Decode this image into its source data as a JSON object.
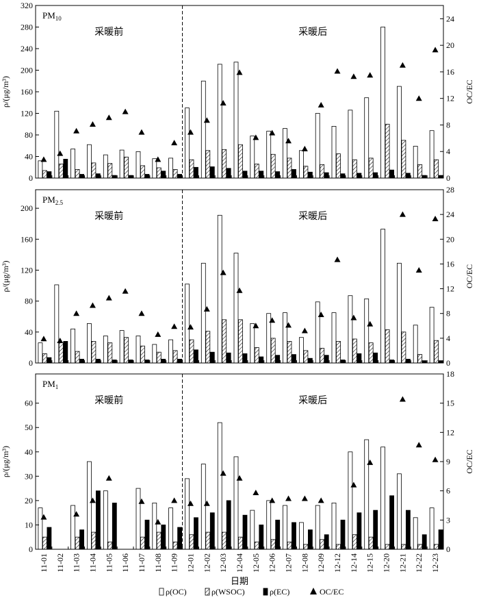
{
  "chart_data": {
    "type": "bar",
    "categories": [
      "11-01",
      "11-02",
      "11-03",
      "11-04",
      "11-05",
      "11-06",
      "11-07",
      "11-08",
      "11-09",
      "12-01",
      "12-02",
      "12-03",
      "12-04",
      "12-05",
      "12-06",
      "12-07",
      "12-08",
      "12-09",
      "12-12",
      "12-14",
      "12-15",
      "12-20",
      "12-21",
      "12-22",
      "12-23"
    ],
    "xlabel": "日期",
    "ylabel": "ρ/(μg/m³)",
    "y2label": "OC/EC",
    "period_labels": [
      "采暖前",
      "采暖后"
    ],
    "divider_after": "11-09",
    "legend": {
      "oc": "ρ(OC)",
      "wsoc": "ρ(WSOC)",
      "ec": "ρ(EC)",
      "ratio": "OC/EC",
      "position": "bottom"
    },
    "panels": [
      {
        "title_main": "PM",
        "title_sub": "10",
        "ylim": [
          0,
          320
        ],
        "yticks": [
          0,
          40,
          80,
          120,
          160,
          200,
          240,
          280,
          320
        ],
        "y2lim": [
          0,
          26
        ],
        "y2ticks": [
          0,
          4,
          8,
          12,
          16,
          20,
          24
        ],
        "series": [
          {
            "name": "ρ(OC)",
            "values": [
              32,
              124,
              54,
              62,
              43,
              52,
              49,
              36,
              37,
              130,
              180,
              211,
              215,
              78,
              87,
              92,
              51,
              120,
              96,
              126,
              149,
              280,
              170,
              59,
              88
            ]
          },
          {
            "name": "ρ(WSOC)",
            "values": [
              14,
              26,
              16,
              28,
              27,
              39,
              23,
              19,
              16,
              34,
              51,
              53,
              62,
              26,
              44,
              37,
              22,
              25,
              45,
              34,
              37,
              100,
              70,
              25,
              34
            ]
          },
          {
            "name": "ρ(EC)",
            "values": [
              12,
              35,
              7,
              8,
              5,
              5,
              7,
              13,
              7,
              20,
              21,
              18,
              13,
              13,
              12,
              16,
              11,
              10,
              8,
              9,
              10,
              15,
              9,
              5,
              5
            ]
          },
          {
            "name": "OC/EC",
            "values": [
              2.8,
              3.7,
              7.1,
              8.1,
              9.1,
              10.0,
              6.9,
              2.8,
              5.3,
              6.9,
              8.7,
              11.3,
              15.9,
              6.1,
              6.8,
              5.6,
              4.4,
              11.0,
              16.1,
              15.3,
              15.5,
              null,
              17.0,
              12.0,
              19.3
            ]
          }
        ]
      },
      {
        "title_main": "PM",
        "title_sub": "2.5",
        "ylim": [
          0,
          224
        ],
        "yticks": [
          0,
          40,
          80,
          120,
          160,
          200
        ],
        "y2lim": [
          0,
          28
        ],
        "y2ticks": [
          0,
          4,
          8,
          12,
          16,
          20,
          24,
          28
        ],
        "series": [
          {
            "name": "ρ(OC)",
            "values": [
              26,
              101,
              44,
              51,
              35,
              42,
              35,
              24,
              30,
              102,
              129,
              191,
              142,
              51,
              64,
              65,
              33,
              79,
              65,
              87,
              83,
              173,
              129,
              49,
              72
            ]
          },
          {
            "name": "ρ(WSOC)",
            "values": [
              12,
              26,
              15,
              28,
              26,
              33,
              22,
              14,
              16,
              30,
              41,
              56,
              56,
              20,
              32,
              28,
              16,
              19,
              28,
              31,
              26,
              43,
              40,
              11,
              29
            ]
          },
          {
            "name": "ρ(EC)",
            "values": [
              7,
              28,
              5,
              5,
              4,
              4,
              4,
              5,
              5,
              17,
              14,
              13,
              12,
              8,
              10,
              11,
              6,
              10,
              4,
              12,
              13,
              4,
              5,
              3,
              3
            ]
          },
          {
            "name": "OC/EC",
            "values": [
              3.9,
              3.6,
              8.0,
              9.3,
              10.5,
              11.6,
              8.0,
              4.6,
              5.9,
              5.8,
              8.7,
              14.6,
              11.7,
              6.0,
              6.9,
              6.1,
              5.2,
              7.8,
              16.7,
              7.3,
              6.3,
              null,
              24.0,
              15.0,
              23.3
            ]
          }
        ]
      },
      {
        "title_main": "PM",
        "title_sub": "1",
        "ylim": [
          0,
          72
        ],
        "yticks": [
          0,
          10,
          20,
          30,
          40,
          50,
          60
        ],
        "y2lim": [
          0,
          18
        ],
        "y2ticks": [
          0,
          3,
          6,
          9,
          12,
          15,
          18
        ],
        "series": [
          {
            "name": "ρ(OC)",
            "values": [
              17,
              0,
              18,
              36,
              24,
              0,
              25,
              19,
              17,
              29,
              35,
              52,
              38,
              16,
              20,
              18,
              11,
              18,
              19,
              40,
              45,
              42,
              31,
              13,
              17
            ]
          },
          {
            "name": "ρ(WSOC)",
            "values": [
              5,
              0,
              5,
              7,
              3,
              0,
              5,
              7,
              3,
              6,
              7,
              7,
              5,
              3,
              4,
              3,
              2,
              4,
              2,
              6,
              5,
              2,
              2,
              2,
              2
            ]
          },
          {
            "name": "ρ(EC)",
            "values": [
              9,
              0,
              8,
              24,
              19,
              0,
              12,
              10,
              9,
              13,
              15,
              20,
              14,
              10,
              12,
              11,
              8,
              6,
              12,
              15,
              16,
              22,
              16,
              6,
              8
            ]
          },
          {
            "name": "OC/EC",
            "values": [
              3.3,
              null,
              3.6,
              5.0,
              7.3,
              null,
              4.9,
              2.8,
              5.0,
              4.7,
              4.7,
              7.8,
              7.3,
              5.8,
              5.0,
              5.2,
              5.2,
              5.0,
              null,
              6.6,
              8.9,
              null,
              15.4,
              10.7,
              9.2
            ]
          }
        ]
      }
    ]
  }
}
